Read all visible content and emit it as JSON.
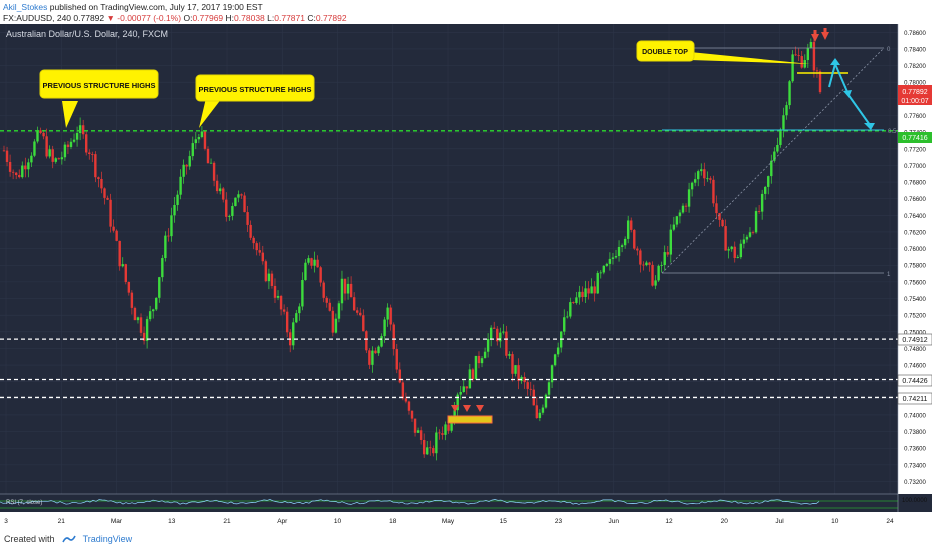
{
  "header": {
    "author": "Akil_Stokes",
    "published": "published on TradingView.com, July 17, 2017 19:00 EST",
    "symbol": "FX:AUDUSD, 240",
    "last": "0.77892",
    "change": "▼ -0.00077 (-0.1%)",
    "ohlc": {
      "o_label": "O:",
      "o": "0.77969",
      "h_label": "H:",
      "h": "0.78038",
      "l_label": "L:",
      "l": "0.77871",
      "c_label": "C:",
      "c": "0.77892"
    }
  },
  "chart_title": "Australian Dollar/U.S. Dollar, 240, FXCM",
  "colors": {
    "background": "#232a3b",
    "grid": "#2d3548",
    "up_candle": "#3ddc3d",
    "down_candle": "#e53935",
    "structure_line": "#2cdc2c",
    "support_line": "#ffffff",
    "callout": "#fff200",
    "arrow_red": "#e84c3d",
    "arrow_cyan": "#2fc6e6",
    "price_tag_red": "#e53935",
    "price_tag_green": "#2cbf2c"
  },
  "annotations": {
    "callout_left": "PREVIOUS STRUCTURE HIGHS",
    "callout_right": "PREVIOUS STRUCTURE HIGHS",
    "double_top": "DOUBLE TOP",
    "fib_top": "0",
    "fib_mid": "0.5",
    "fib_bottom": "1"
  },
  "price_tags": {
    "last_price": "0.77892",
    "countdown": "01:00:07",
    "structure": "0.77416",
    "level_1": "0.74912",
    "level_2": "0.74426",
    "level_3": "0.74211"
  },
  "rsi": {
    "label": "RSI (7, close)",
    "level_label": "100.0000"
  },
  "chart_data": {
    "type": "candlestick",
    "title": "Australian Dollar/U.S. Dollar, 240, FXCM",
    "x_tick_labels": [
      "3",
      "21",
      "Mar",
      "13",
      "21",
      "Apr",
      "10",
      "18",
      "May",
      "15",
      "23",
      "Jun",
      "12",
      "20",
      "Jul",
      "10",
      "24"
    ],
    "y_tick_labels": [
      "0.78600",
      "0.78400",
      "0.78200",
      "0.78000",
      "0.77800",
      "0.77600",
      "0.77400",
      "0.77200",
      "0.77000",
      "0.76800",
      "0.76600",
      "0.76400",
      "0.76200",
      "0.76000",
      "0.75800",
      "0.75600",
      "0.75400",
      "0.75200",
      "0.75000",
      "0.74800",
      "0.74600",
      "0.74400",
      "0.74200",
      "0.74000",
      "0.73800",
      "0.73600",
      "0.73400",
      "0.73200"
    ],
    "ylim": [
      0.7305,
      0.787
    ],
    "horizontal_levels": [
      {
        "value": 0.77416,
        "style": "dashed",
        "color": "green"
      },
      {
        "value": 0.74912,
        "style": "dashed",
        "color": "white"
      },
      {
        "value": 0.74426,
        "style": "dashed",
        "color": "white"
      },
      {
        "value": 0.74211,
        "style": "dashed",
        "color": "white"
      }
    ],
    "price_path": [
      [
        0,
        0.7718
      ],
      [
        4,
        0.7685
      ],
      [
        8,
        0.7712
      ],
      [
        12,
        0.7738
      ],
      [
        16,
        0.7702
      ],
      [
        20,
        0.7715
      ],
      [
        24,
        0.7744
      ],
      [
        28,
        0.772
      ],
      [
        31,
        0.7685
      ],
      [
        34,
        0.765
      ],
      [
        37,
        0.7602
      ],
      [
        40,
        0.756
      ],
      [
        43,
        0.7522
      ],
      [
        46,
        0.75
      ],
      [
        49,
        0.753
      ],
      [
        52,
        0.759
      ],
      [
        55,
        0.764
      ],
      [
        58,
        0.768
      ],
      [
        61,
        0.771
      ],
      [
        64,
        0.7744
      ],
      [
        67,
        0.7702
      ],
      [
        70,
        0.7675
      ],
      [
        73,
        0.764
      ],
      [
        76,
        0.7665
      ],
      [
        79,
        0.765
      ],
      [
        82,
        0.761
      ],
      [
        85,
        0.7575
      ],
      [
        88,
        0.756
      ],
      [
        91,
        0.7525
      ],
      [
        94,
        0.7492
      ],
      [
        96,
        0.752
      ],
      [
        99,
        0.7575
      ],
      [
        102,
        0.759
      ],
      [
        105,
        0.7545
      ],
      [
        108,
        0.751
      ],
      [
        111,
        0.756
      ],
      [
        114,
        0.754
      ],
      [
        117,
        0.751
      ],
      [
        120,
        0.747
      ],
      [
        123,
        0.749
      ],
      [
        126,
        0.753
      ],
      [
        128,
        0.748
      ],
      [
        131,
        0.742
      ],
      [
        134,
        0.739
      ],
      [
        137,
        0.737
      ],
      [
        140,
        0.735
      ],
      [
        143,
        0.738
      ],
      [
        146,
        0.739
      ],
      [
        149,
        0.743
      ],
      [
        152,
        0.744
      ],
      [
        155,
        0.746
      ],
      [
        158,
        0.7485
      ],
      [
        161,
        0.75
      ],
      [
        164,
        0.749
      ],
      [
        167,
        0.7455
      ],
      [
        170,
        0.744
      ],
      [
        173,
        0.7425
      ],
      [
        175,
        0.739
      ],
      [
        178,
        0.743
      ],
      [
        181,
        0.748
      ],
      [
        184,
        0.751
      ],
      [
        187,
        0.7535
      ],
      [
        190,
        0.7545
      ],
      [
        193,
        0.755
      ],
      [
        196,
        0.7565
      ],
      [
        199,
        0.758
      ],
      [
        202,
        0.761
      ],
      [
        205,
        0.7625
      ],
      [
        208,
        0.76
      ],
      [
        211,
        0.7575
      ],
      [
        214,
        0.756
      ],
      [
        217,
        0.759
      ],
      [
        220,
        0.7625
      ],
      [
        223,
        0.765
      ],
      [
        226,
        0.7675
      ],
      [
        229,
        0.77
      ],
      [
        232,
        0.768
      ],
      [
        235,
        0.7625
      ],
      [
        238,
        0.76
      ],
      [
        241,
        0.759
      ],
      [
        244,
        0.762
      ],
      [
        247,
        0.7635
      ],
      [
        250,
        0.7665
      ],
      [
        253,
        0.772
      ],
      [
        256,
        0.776
      ],
      [
        259,
        0.783
      ],
      [
        262,
        0.7828
      ],
      [
        265,
        0.784
      ],
      [
        268,
        0.7789
      ]
    ],
    "rsi_level": 100.0
  }
}
